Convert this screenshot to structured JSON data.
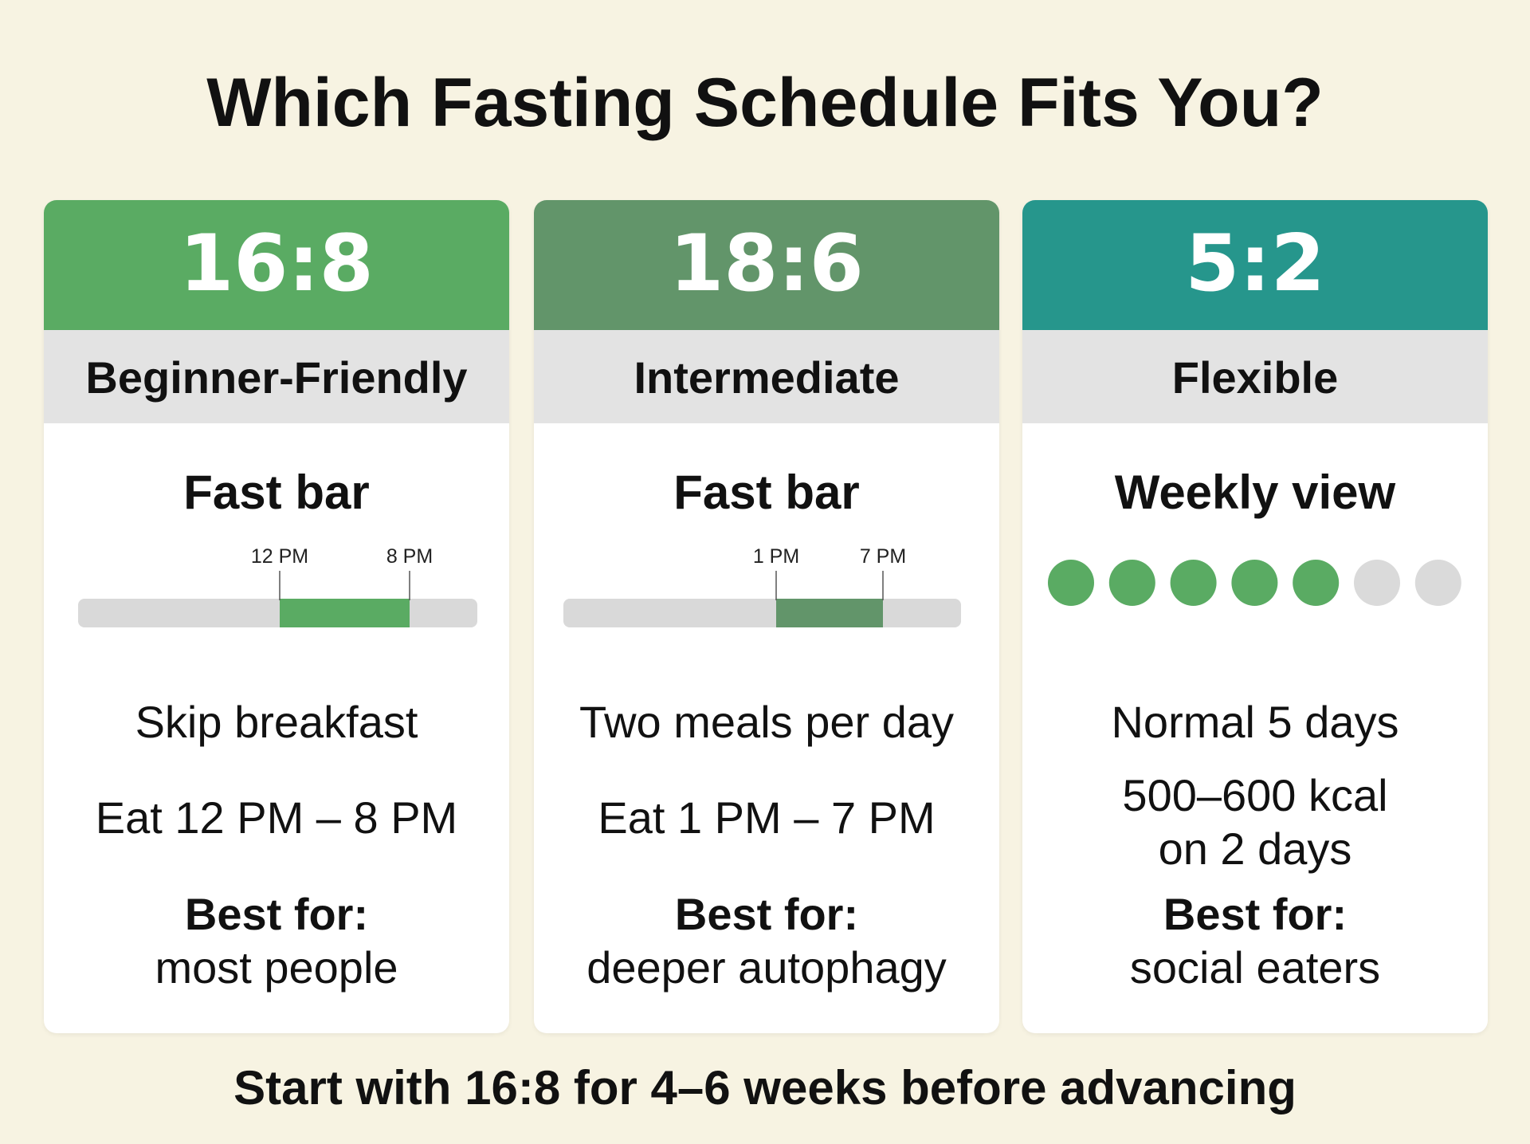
{
  "header": {
    "title": "Which Fasting Schedule Fits You?"
  },
  "cards": [
    {
      "ratio": "16:8",
      "level": "Beginner-Friendly",
      "visual_title": "Fast bar",
      "window_labels": [
        "12 PM",
        "8 PM"
      ],
      "lines": [
        "Skip breakfast",
        "Eat 12 PM – 8 PM"
      ],
      "best_for_label": "Best for:",
      "best_for_value": "most people"
    },
    {
      "ratio": "18:6",
      "level": "Intermediate",
      "visual_title": "Fast bar",
      "window_labels": [
        "1 PM",
        "7 PM"
      ],
      "lines": [
        "Two meals per day",
        "Eat 1 PM – 7 PM"
      ],
      "best_for_label": "Best for:",
      "best_for_value": "deeper autophagy"
    },
    {
      "ratio": "5:2",
      "level": "Flexible",
      "visual_title": "Weekly view",
      "lines": [
        "Normal 5 days",
        "500–600 kcal",
        "on 2 days"
      ],
      "best_for_label": "Best for:",
      "best_for_value": "social eaters"
    }
  ],
  "footer": "Start with 16:8 for 4–6 weeks before advancing"
}
